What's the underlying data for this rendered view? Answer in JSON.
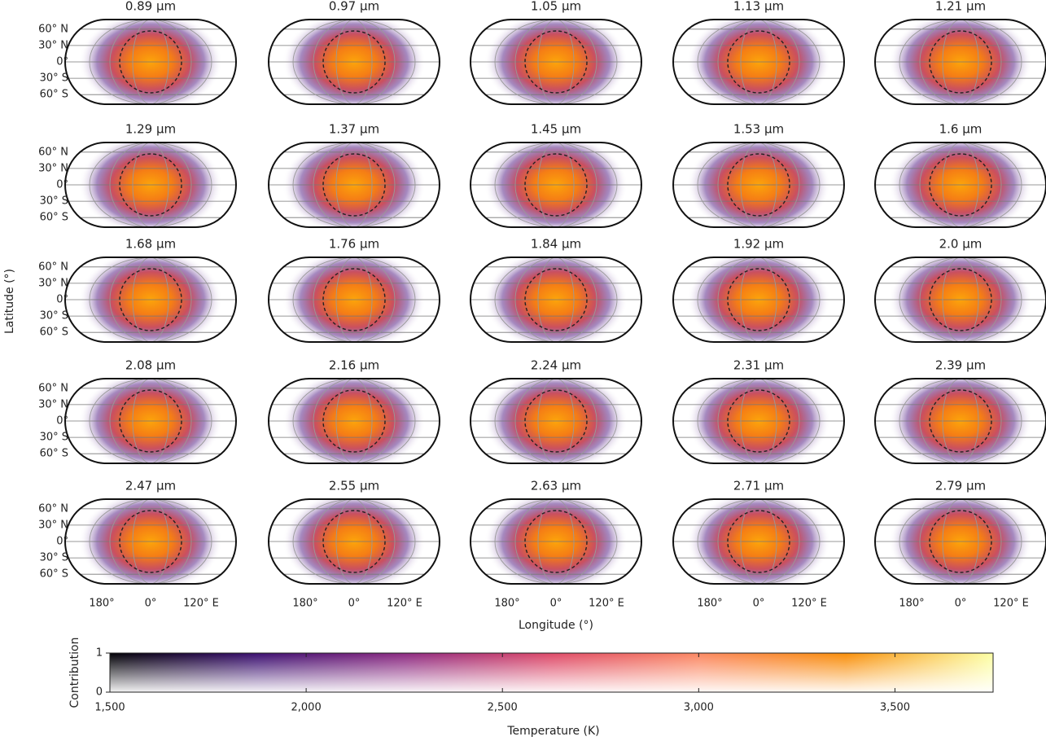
{
  "chart_data": {
    "type": "map-grid",
    "panels": [
      {
        "title": "0.89 μm"
      },
      {
        "title": "0.97 μm"
      },
      {
        "title": "1.05 μm"
      },
      {
        "title": "1.13 μm"
      },
      {
        "title": "1.21 μm"
      },
      {
        "title": "1.29 μm"
      },
      {
        "title": "1.37 μm"
      },
      {
        "title": "1.45 μm"
      },
      {
        "title": "1.53 μm"
      },
      {
        "title": "1.6 μm"
      },
      {
        "title": "1.68 μm"
      },
      {
        "title": "1.76 μm"
      },
      {
        "title": "1.84 μm"
      },
      {
        "title": "1.92 μm"
      },
      {
        "title": "2.0 μm"
      },
      {
        "title": "2.08 μm"
      },
      {
        "title": "2.16 μm"
      },
      {
        "title": "2.24 μm"
      },
      {
        "title": "2.31 μm"
      },
      {
        "title": "2.39 μm"
      },
      {
        "title": "2.47 μm"
      },
      {
        "title": "2.55 μm"
      },
      {
        "title": "2.63 μm"
      },
      {
        "title": "2.71 μm"
      },
      {
        "title": "2.79 μm"
      }
    ],
    "lat_ticks": [
      {
        "value": 60,
        "label": "60° N"
      },
      {
        "value": 30,
        "label": "30° N"
      },
      {
        "value": 0,
        "label": "0°"
      },
      {
        "value": -30,
        "label": "30° S"
      },
      {
        "value": -60,
        "label": "60° S"
      }
    ],
    "lon_labels": [
      "180°",
      "0°",
      "120° E"
    ],
    "ylabel": "Latitude (°)",
    "xlabel": "Longitude (°)",
    "colorbar": {
      "colormap": [
        "#000004",
        "#3b0f70",
        "#8c2981",
        "#de4968",
        "#fb8761",
        "#f98e09",
        "#fcffa4"
      ],
      "xlim": [
        1500,
        3750
      ],
      "xticks": [
        {
          "value": 1500,
          "label": "1,500"
        },
        {
          "value": 2000,
          "label": "2,000"
        },
        {
          "value": 2500,
          "label": "2,500"
        },
        {
          "value": 3000,
          "label": "3,000"
        },
        {
          "value": 3500,
          "label": "3,500"
        }
      ],
      "xlabel": "Temperature (K)",
      "ylim": [
        0,
        1
      ],
      "yticks": [
        0,
        1
      ],
      "ylabel": "Contribution"
    }
  }
}
